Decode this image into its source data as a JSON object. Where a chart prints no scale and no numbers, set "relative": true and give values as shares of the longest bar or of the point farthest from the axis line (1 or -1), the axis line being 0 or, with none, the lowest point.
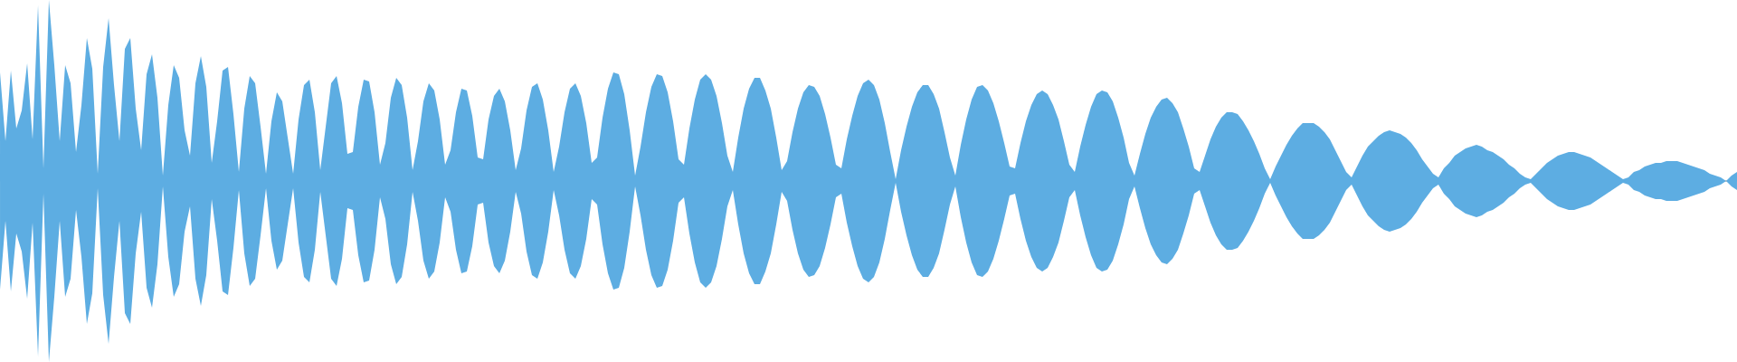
{
  "chart_data": {
    "type": "area",
    "relative": true,
    "categories": [
      null,
      null,
      null,
      null,
      null,
      null,
      null,
      null,
      null,
      null,
      null,
      null,
      null,
      null,
      null,
      null,
      null,
      null,
      null,
      null,
      null,
      null,
      null,
      null,
      null,
      null,
      null,
      null,
      null,
      null,
      null,
      null,
      null,
      null,
      null,
      null,
      null,
      null,
      null,
      null,
      null,
      null,
      null,
      null,
      null,
      null,
      null,
      null,
      null,
      null,
      null,
      null,
      null,
      null,
      null,
      null,
      null,
      null,
      null,
      null,
      null,
      null,
      null,
      null,
      null,
      null,
      null,
      null,
      null,
      null,
      null,
      null,
      null,
      null,
      null,
      null,
      null,
      null,
      null,
      null,
      null,
      null,
      null,
      null,
      null,
      null,
      null,
      null,
      null,
      null,
      null,
      null,
      null,
      null,
      null,
      null,
      null,
      null,
      null,
      null,
      null,
      null,
      null,
      null,
      null,
      null,
      null,
      null,
      null,
      null,
      null,
      null,
      null,
      null,
      null,
      null,
      null,
      null,
      null,
      null,
      null,
      null,
      null,
      null,
      null,
      null,
      null,
      null,
      null,
      null,
      null,
      null,
      null,
      null,
      null,
      null,
      null,
      null,
      null,
      null,
      null,
      null,
      null,
      null,
      null,
      null,
      null,
      null,
      null,
      null,
      null,
      null,
      null,
      null,
      null,
      null,
      null,
      null,
      null,
      null,
      null,
      null,
      null,
      null,
      null,
      null,
      null,
      null,
      null,
      null,
      null,
      null,
      null,
      null,
      null,
      null,
      null,
      null,
      null,
      null,
      null,
      null,
      null,
      null,
      null,
      null,
      null,
      null,
      null,
      null,
      null,
      null,
      null,
      null,
      null,
      null,
      null,
      null,
      null,
      null,
      null,
      null,
      null,
      null,
      null,
      null,
      null,
      null,
      null,
      null,
      null,
      null,
      null,
      null,
      null,
      null,
      null,
      null,
      null,
      null,
      null,
      null,
      null,
      null,
      null,
      null,
      null,
      null,
      null,
      null,
      null,
      null,
      null,
      null,
      null,
      null,
      null,
      null,
      null,
      null,
      null,
      null,
      null,
      null,
      null,
      null,
      null,
      null,
      null,
      null,
      null,
      null,
      null,
      null,
      null,
      null,
      null,
      null,
      null,
      null,
      null,
      null,
      null,
      null,
      null,
      null,
      null,
      null,
      null,
      null,
      null,
      null,
      null,
      null,
      null,
      null,
      null,
      null,
      null,
      null,
      null,
      null,
      null,
      null,
      null,
      null,
      null,
      null,
      null,
      null,
      null,
      null,
      null,
      null,
      null,
      null,
      null,
      null,
      null,
      null,
      null,
      null,
      null,
      null,
      null,
      null,
      null,
      null,
      null,
      null,
      null,
      null,
      null,
      null,
      null,
      null,
      null,
      null,
      null,
      null,
      null
    ],
    "series": [
      {
        "color": "#5dade2",
        "values": [
          0.6,
          0.22,
          0.61,
          0.29,
          0.39,
          0.65,
          0.23,
          0.97,
          0.07,
          1.0,
          0.64,
          0.22,
          0.64,
          0.54,
          0.16,
          0.42,
          0.79,
          0.62,
          0.04,
          0.63,
          0.9,
          0.53,
          0.22,
          0.73,
          0.79,
          0.4,
          0.17,
          0.59,
          0.7,
          0.46,
          0.03,
          0.42,
          0.64,
          0.57,
          0.28,
          0.14,
          0.54,
          0.69,
          0.52,
          0.1,
          0.33,
          0.61,
          0.63,
          0.37,
          0.05,
          0.4,
          0.58,
          0.54,
          0.3,
          0.04,
          0.33,
          0.49,
          0.44,
          0.24,
          0.04,
          0.34,
          0.53,
          0.56,
          0.38,
          0.06,
          0.3,
          0.54,
          0.58,
          0.43,
          0.15,
          0.16,
          0.41,
          0.56,
          0.55,
          0.38,
          0.09,
          0.21,
          0.46,
          0.57,
          0.53,
          0.35,
          0.06,
          0.22,
          0.44,
          0.54,
          0.5,
          0.34,
          0.09,
          0.17,
          0.38,
          0.51,
          0.5,
          0.36,
          0.13,
          0.12,
          0.34,
          0.47,
          0.51,
          0.44,
          0.28,
          0.06,
          0.18,
          0.39,
          0.52,
          0.54,
          0.45,
          0.28,
          0.05,
          0.19,
          0.38,
          0.51,
          0.54,
          0.47,
          0.32,
          0.1,
          0.13,
          0.35,
          0.51,
          0.6,
          0.59,
          0.48,
          0.28,
          0.03,
          0.19,
          0.38,
          0.52,
          0.59,
          0.58,
          0.49,
          0.33,
          0.12,
          0.09,
          0.29,
          0.45,
          0.56,
          0.59,
          0.56,
          0.47,
          0.32,
          0.14,
          0.05,
          0.24,
          0.4,
          0.51,
          0.57,
          0.57,
          0.5,
          0.4,
          0.24,
          0.06,
          0.11,
          0.27,
          0.4,
          0.49,
          0.53,
          0.52,
          0.47,
          0.37,
          0.24,
          0.09,
          0.07,
          0.23,
          0.36,
          0.47,
          0.54,
          0.56,
          0.53,
          0.45,
          0.32,
          0.16,
          0.01,
          0.17,
          0.3,
          0.41,
          0.49,
          0.53,
          0.53,
          0.48,
          0.4,
          0.27,
          0.13,
          0.03,
          0.2,
          0.34,
          0.45,
          0.52,
          0.53,
          0.5,
          0.43,
          0.33,
          0.21,
          0.08,
          0.07,
          0.21,
          0.33,
          0.42,
          0.48,
          0.5,
          0.48,
          0.42,
          0.34,
          0.22,
          0.09,
          0.05,
          0.19,
          0.31,
          0.41,
          0.48,
          0.5,
          0.49,
          0.44,
          0.35,
          0.24,
          0.1,
          0.03,
          0.15,
          0.26,
          0.35,
          0.41,
          0.45,
          0.46,
          0.43,
          0.38,
          0.29,
          0.19,
          0.07,
          0.05,
          0.14,
          0.23,
          0.3,
          0.35,
          0.38,
          0.38,
          0.37,
          0.33,
          0.28,
          0.22,
          0.15,
          0.07,
          0.01,
          0.08,
          0.14,
          0.2,
          0.25,
          0.29,
          0.32,
          0.32,
          0.32,
          0.3,
          0.27,
          0.23,
          0.17,
          0.11,
          0.05,
          0.02,
          0.08,
          0.14,
          0.19,
          0.22,
          0.25,
          0.27,
          0.28,
          0.27,
          0.26,
          0.24,
          0.21,
          0.17,
          0.12,
          0.08,
          0.04,
          0.02,
          0.07,
          0.1,
          0.14,
          0.16,
          0.18,
          0.19,
          0.2,
          0.19,
          0.17,
          0.16,
          0.14,
          0.12,
          0.09,
          0.07,
          0.04,
          0.02,
          0.01,
          0.04,
          0.07,
          0.1,
          0.12,
          0.14,
          0.15,
          0.16,
          0.16,
          0.15,
          0.14,
          0.13,
          0.11,
          0.09,
          0.07,
          0.05,
          0.03,
          0.01,
          0.02,
          0.05,
          0.06,
          0.08,
          0.09,
          0.1,
          0.1,
          0.11,
          0.11,
          0.11,
          0.1,
          0.09,
          0.08,
          0.07,
          0.06,
          0.04,
          0.03,
          0.02,
          0,
          0.03,
          0.05
        ]
      },
      {
        "color": "#5dade2",
        "values": [
          -0.6,
          -0.22,
          -0.61,
          -0.29,
          -0.39,
          -0.65,
          -0.23,
          -0.97,
          -0.07,
          -1.0,
          -0.64,
          -0.22,
          -0.64,
          -0.54,
          -0.16,
          -0.42,
          -0.79,
          -0.62,
          -0.04,
          -0.63,
          -0.9,
          -0.53,
          -0.22,
          -0.73,
          -0.79,
          -0.4,
          -0.17,
          -0.59,
          -0.7,
          -0.46,
          -0.03,
          -0.42,
          -0.64,
          -0.57,
          -0.28,
          -0.14,
          -0.54,
          -0.69,
          -0.52,
          -0.1,
          -0.33,
          -0.61,
          -0.63,
          -0.37,
          -0.05,
          -0.4,
          -0.58,
          -0.54,
          -0.3,
          -0.04,
          -0.33,
          -0.49,
          -0.44,
          -0.24,
          -0.04,
          -0.34,
          -0.53,
          -0.56,
          -0.38,
          -0.06,
          -0.3,
          -0.54,
          -0.58,
          -0.43,
          -0.15,
          -0.16,
          -0.41,
          -0.56,
          -0.55,
          -0.38,
          -0.09,
          -0.21,
          -0.46,
          -0.57,
          -0.53,
          -0.35,
          -0.06,
          -0.22,
          -0.44,
          -0.54,
          -0.5,
          -0.34,
          -0.09,
          -0.17,
          -0.38,
          -0.51,
          -0.5,
          -0.36,
          -0.13,
          -0.12,
          -0.34,
          -0.47,
          -0.51,
          -0.44,
          -0.28,
          -0.06,
          -0.18,
          -0.39,
          -0.52,
          -0.54,
          -0.45,
          -0.28,
          -0.05,
          -0.19,
          -0.38,
          -0.51,
          -0.54,
          -0.47,
          -0.32,
          -0.1,
          -0.13,
          -0.35,
          -0.51,
          -0.6,
          -0.59,
          -0.48,
          -0.28,
          -0.03,
          -0.19,
          -0.38,
          -0.52,
          -0.59,
          -0.58,
          -0.49,
          -0.33,
          -0.12,
          -0.09,
          -0.29,
          -0.45,
          -0.56,
          -0.59,
          -0.56,
          -0.47,
          -0.32,
          -0.14,
          -0.05,
          -0.24,
          -0.4,
          -0.51,
          -0.57,
          -0.57,
          -0.5,
          -0.4,
          -0.24,
          -0.06,
          -0.11,
          -0.27,
          -0.4,
          -0.49,
          -0.53,
          -0.52,
          -0.47,
          -0.37,
          -0.24,
          -0.09,
          -0.07,
          -0.23,
          -0.36,
          -0.47,
          -0.54,
          -0.56,
          -0.53,
          -0.45,
          -0.32,
          -0.16,
          -0.01,
          -0.17,
          -0.3,
          -0.41,
          -0.49,
          -0.53,
          -0.53,
          -0.48,
          -0.4,
          -0.27,
          -0.13,
          -0.03,
          -0.2,
          -0.34,
          -0.45,
          -0.52,
          -0.53,
          -0.5,
          -0.43,
          -0.33,
          -0.21,
          -0.08,
          -0.07,
          -0.21,
          -0.33,
          -0.42,
          -0.48,
          -0.5,
          -0.48,
          -0.42,
          -0.34,
          -0.22,
          -0.09,
          -0.05,
          -0.19,
          -0.31,
          -0.41,
          -0.48,
          -0.5,
          -0.49,
          -0.44,
          -0.35,
          -0.24,
          -0.1,
          -0.03,
          -0.15,
          -0.26,
          -0.35,
          -0.41,
          -0.45,
          -0.46,
          -0.43,
          -0.38,
          -0.29,
          -0.19,
          -0.07,
          -0.05,
          -0.14,
          -0.23,
          -0.3,
          -0.35,
          -0.38,
          -0.38,
          -0.37,
          -0.33,
          -0.28,
          -0.22,
          -0.15,
          -0.07,
          -0.01,
          -0.08,
          -0.14,
          -0.2,
          -0.25,
          -0.29,
          -0.32,
          -0.32,
          -0.32,
          -0.3,
          -0.27,
          -0.23,
          -0.17,
          -0.11,
          -0.05,
          -0.02,
          -0.08,
          -0.14,
          -0.19,
          -0.22,
          -0.25,
          -0.27,
          -0.28,
          -0.27,
          -0.26,
          -0.24,
          -0.21,
          -0.17,
          -0.12,
          -0.08,
          -0.04,
          -0.02,
          -0.07,
          -0.1,
          -0.14,
          -0.16,
          -0.18,
          -0.19,
          -0.2,
          -0.19,
          -0.17,
          -0.16,
          -0.14,
          -0.12,
          -0.09,
          -0.07,
          -0.04,
          -0.02,
          -0.01,
          -0.04,
          -0.07,
          -0.1,
          -0.12,
          -0.14,
          -0.15,
          -0.16,
          -0.16,
          -0.15,
          -0.14,
          -0.13,
          -0.11,
          -0.09,
          -0.07,
          -0.05,
          -0.03,
          -0.01,
          -0.02,
          -0.05,
          -0.06,
          -0.08,
          -0.09,
          -0.1,
          -0.1,
          -0.11,
          -0.11,
          -0.11,
          -0.1,
          -0.09,
          -0.08,
          -0.07,
          -0.06,
          -0.04,
          -0.03,
          -0.02,
          0,
          -0.03,
          -0.05
        ]
      }
    ]
  }
}
